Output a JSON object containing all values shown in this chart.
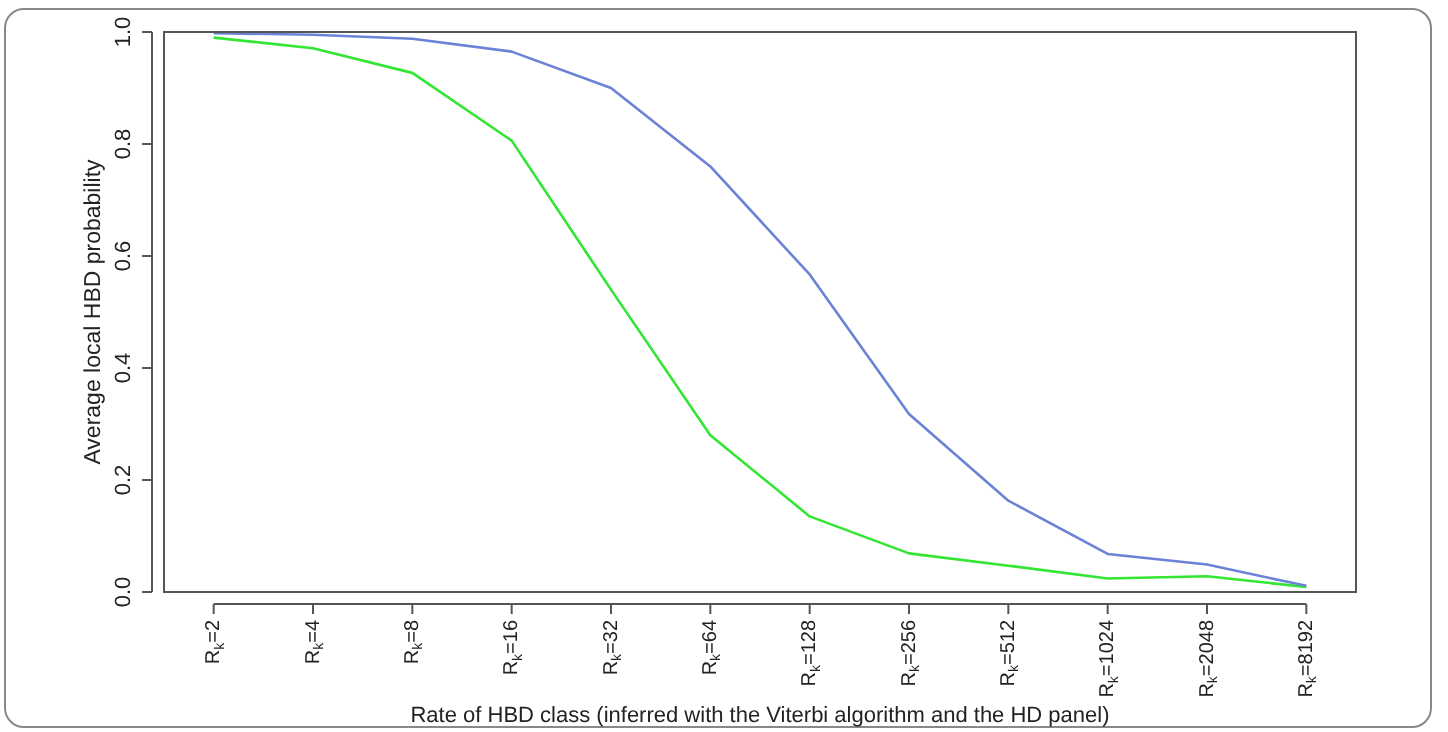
{
  "chart_data": {
    "type": "line",
    "xlabel": "Rate of HBD class (inferred with the Viterbi algorithm and the HD panel)",
    "ylabel": "Average local HBD probability",
    "categories": [
      "R$_{k}$=2",
      "R$_{k}$=4",
      "R$_{k}$=8",
      "R$_{k}$=16",
      "R$_{k}$=32",
      "R$_{k}$=64",
      "R$_{k}$=128",
      "R$_{k}$=256",
      "R$_{k}$=512",
      "R$_{k}$=1024",
      "R$_{k}$=2048",
      "R$_{k}$=8192"
    ],
    "series": [
      {
        "color": "#6b82d6",
        "values": [
          0.998,
          0.995,
          0.988,
          0.965,
          0.9,
          0.76,
          0.567,
          0.318,
          0.163,
          0.068,
          0.049,
          0.011
        ]
      },
      {
        "color": "#33e633",
        "values": [
          0.99,
          0.971,
          0.927,
          0.806,
          0.54,
          0.28,
          0.135,
          0.069,
          0.047,
          0.024,
          0.028,
          0.009
        ]
      }
    ],
    "ylim": [
      0,
      1.0
    ],
    "yticks": [
      {
        "value": 0,
        "label": "0.0"
      },
      {
        "value": 0.2,
        "label": "0.2"
      },
      {
        "value": 0.4,
        "label": "0.4"
      },
      {
        "value": 0.6,
        "label": "0.6"
      },
      {
        "value": 0.8,
        "label": "0.8"
      },
      {
        "value": 1.0,
        "label": "1.0"
      }
    ],
    "grid": false,
    "legend": false,
    "marker": "none",
    "line_style": "solid"
  }
}
